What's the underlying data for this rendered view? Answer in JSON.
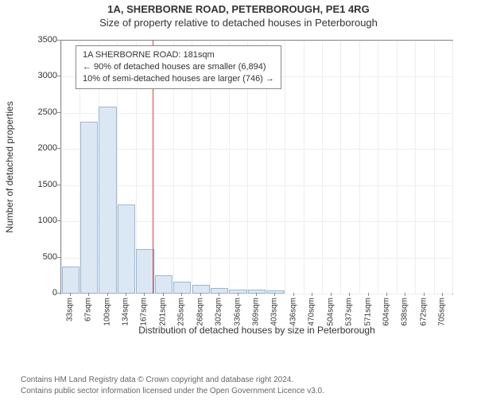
{
  "header": {
    "title": "1A, SHERBORNE ROAD, PETERBOROUGH, PE1 4RG",
    "subtitle": "Size of property relative to detached houses in Peterborough"
  },
  "chart": {
    "type": "histogram",
    "ylabel": "Number of detached properties",
    "xlabel": "Distribution of detached houses by size in Peterborough",
    "ylim": [
      0,
      3500
    ],
    "ytick_step": 500,
    "yticks": [
      0,
      500,
      1000,
      1500,
      2000,
      2500,
      3000,
      3500
    ],
    "categories": [
      "33sqm",
      "67sqm",
      "100sqm",
      "134sqm",
      "167sqm",
      "201sqm",
      "235sqm",
      "268sqm",
      "302sqm",
      "336sqm",
      "369sqm",
      "403sqm",
      "436sqm",
      "470sqm",
      "504sqm",
      "537sqm",
      "571sqm",
      "604sqm",
      "638sqm",
      "672sqm",
      "705sqm"
    ],
    "values": [
      370,
      2380,
      2590,
      1230,
      620,
      250,
      160,
      120,
      80,
      60,
      50,
      40,
      0,
      0,
      0,
      0,
      0,
      0,
      0,
      0,
      0
    ],
    "bar_color": "#dbe7f3",
    "bar_border_color": "#9bb8d3",
    "bar_width": 0.95,
    "background_color": "#ffffff",
    "grid_color": "#eeeeee",
    "axis_color": "#888888",
    "label_fontsize": 12,
    "tick_fontsize": 11,
    "ref_line": {
      "x_value": 181,
      "color": "#d64545",
      "label": "181sqm"
    },
    "info_box": {
      "line1": "1A SHERBORNE ROAD: 181sqm",
      "line2": "← 90% of detached houses are smaller (6,894)",
      "line3": "10% of semi-detached houses are larger (746) →",
      "fontsize": 11
    }
  },
  "footer": {
    "line1": "Contains HM Land Registry data © Crown copyright and database right 2024.",
    "line2": "Contains public sector information licensed under the Open Government Licence v3.0."
  }
}
